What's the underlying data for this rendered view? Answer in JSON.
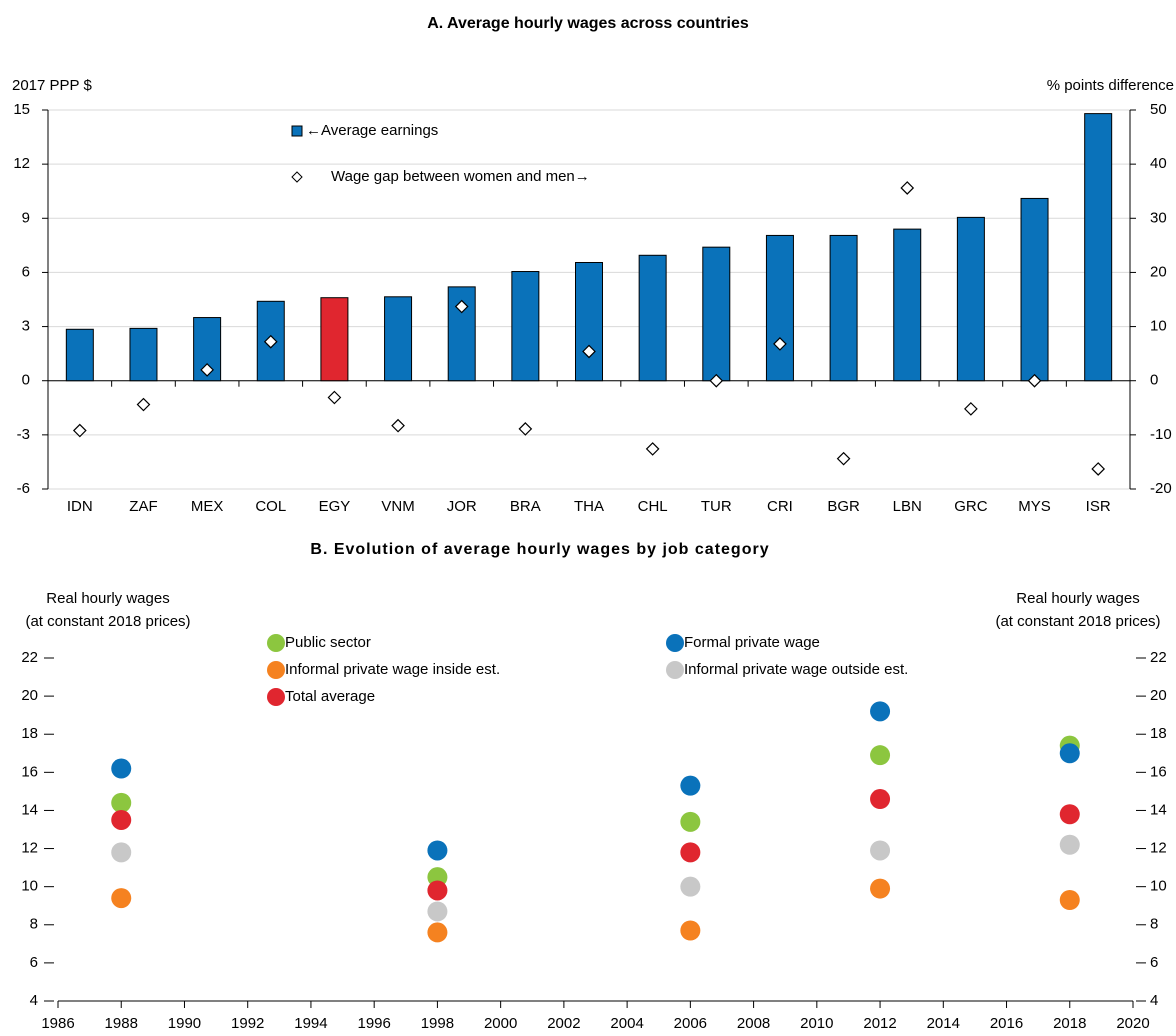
{
  "chart_data": [
    {
      "type": "bar",
      "title": "A. Average hourly wages across countries",
      "ylabel": "2017 PPP $",
      "y2label": "% points difference",
      "categories": [
        "IDN",
        "ZAF",
        "MEX",
        "COL",
        "EGY",
        "VNM",
        "JOR",
        "BRA",
        "THA",
        "CHL",
        "TUR",
        "CRI",
        "BGR",
        "LBN",
        "GRC",
        "MYS",
        "ISR"
      ],
      "series": [
        {
          "name": "←Average earnings",
          "type": "bar",
          "color": "#0a72ba",
          "colors": [
            "#0a72ba",
            "#0a72ba",
            "#0a72ba",
            "#0a72ba",
            "#e0262f",
            "#0a72ba",
            "#0a72ba",
            "#0a72ba",
            "#0a72ba",
            "#0a72ba",
            "#0a72ba",
            "#0a72ba",
            "#0a72ba",
            "#0a72ba",
            "#0a72ba",
            "#0a72ba",
            "#0a72ba"
          ],
          "values": [
            2.85,
            2.9,
            3.5,
            4.4,
            4.6,
            4.65,
            5.2,
            6.05,
            6.55,
            6.95,
            7.4,
            8.05,
            8.05,
            8.4,
            9.05,
            10.1,
            14.8
          ]
        },
        {
          "name": "Wage gap between women and men→",
          "type": "diamond",
          "color": "#ffffff",
          "axis": "y2",
          "values": [
            -9.2,
            -4.4,
            2.0,
            7.2,
            -3.1,
            -8.3,
            13.7,
            -8.9,
            5.4,
            -12.6,
            0,
            6.8,
            -14.4,
            35.6,
            -5.2,
            0,
            -16.3
          ]
        }
      ],
      "ylim": [
        -6,
        15
      ],
      "yticks": [
        -6,
        -3,
        0,
        3,
        6,
        9,
        12,
        15
      ],
      "y2lim": [
        -20,
        50
      ],
      "y2ticks": [
        -20,
        -10,
        0,
        10,
        20,
        30,
        40,
        50
      ],
      "grid": true
    },
    {
      "type": "scatter",
      "title": "B. Evolution of average hourly wages by job category",
      "ylabel": [
        "Real hourly wages",
        "(at constant 2018 prices)"
      ],
      "y2label": [
        "Real hourly wages",
        "(at constant 2018 prices)"
      ],
      "x": [
        1988,
        1998,
        2006,
        2012,
        2018
      ],
      "series": [
        {
          "name": "Public sector",
          "color": "#8cc63f",
          "values": [
            14.4,
            10.5,
            13.4,
            16.9,
            17.4
          ]
        },
        {
          "name": "Formal private wage",
          "color": "#0a72ba",
          "values": [
            16.2,
            11.9,
            15.3,
            19.2,
            17.0
          ]
        },
        {
          "name": "Informal private wage inside est.",
          "color": "#f58220",
          "values": [
            9.4,
            7.6,
            7.7,
            9.9,
            9.3
          ]
        },
        {
          "name": "Informal private wage outside est.",
          "color": "#c8c8c8",
          "values": [
            11.8,
            8.7,
            10.0,
            11.9,
            12.2
          ]
        },
        {
          "name": "Total average",
          "color": "#e0262f",
          "values": [
            13.5,
            9.8,
            11.8,
            14.6,
            13.8
          ]
        }
      ],
      "xlim": [
        1986,
        2020
      ],
      "xticks": [
        1986,
        1988,
        1990,
        1992,
        1994,
        1996,
        1998,
        2000,
        2002,
        2004,
        2006,
        2008,
        2010,
        2012,
        2014,
        2016,
        2018,
        2020
      ],
      "ylim": [
        4,
        22
      ],
      "yticks": [
        4,
        6,
        8,
        10,
        12,
        14,
        16,
        18,
        20,
        22
      ],
      "y2lim": [
        4,
        22
      ],
      "y2ticks": [
        4,
        6,
        8,
        10,
        12,
        14,
        16,
        18,
        20,
        22
      ],
      "grid": false
    }
  ]
}
